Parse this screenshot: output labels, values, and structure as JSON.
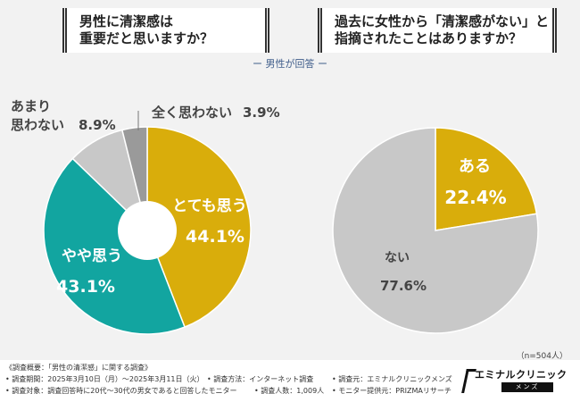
{
  "questions": {
    "q1": [
      "男性に清潔感は",
      "重要だと思いますか？"
    ],
    "q2": [
      "過去に女性から「清潔感がない」と",
      "指摘されたことはありますか？"
    ]
  },
  "respondent_label": "ー 男性が回答 ー",
  "sample_note": "（n=504人）",
  "chart_data": [
    {
      "type": "pie",
      "donut": true,
      "title": "男性に清潔感は重要だと思いますか？",
      "slices": [
        {
          "label": "とても思う",
          "value": 44.1,
          "display": "44.1%",
          "color": "#d9ad0b",
          "text_color": "#ffffff"
        },
        {
          "label": "やや思う",
          "value": 43.1,
          "display": "43.1%",
          "color": "#12a5a0",
          "text_color": "#ffffff"
        },
        {
          "label": "あまり思わない",
          "label_lines": [
            "あまり",
            "思わない"
          ],
          "value": 8.9,
          "display": "8.9%",
          "color": "#c8c8c8",
          "text_color": "#444444"
        },
        {
          "label": "全く思わない",
          "value": 3.9,
          "display": "3.9%",
          "color": "#9a9a9a",
          "text_color": "#444444"
        }
      ]
    },
    {
      "type": "pie",
      "donut": false,
      "title": "過去に女性から「清潔感がない」と指摘されたことはありますか？",
      "slices": [
        {
          "label": "ある",
          "value": 22.4,
          "display": "22.4%",
          "color": "#d9ad0b",
          "text_color": "#ffffff"
        },
        {
          "label": "ない",
          "value": 77.6,
          "display": "77.6%",
          "color": "#c8c8c8",
          "text_color": "#444444"
        }
      ]
    }
  ],
  "footer": {
    "overview": "《調査概要：「男性の清潔感」に関する調査》",
    "period": "• 調査期間：2025年3月10日（月）～2025年3月11日（火）",
    "method": "• 調査方法：インターネット調査",
    "source": "• 調査元：エミナルクリニックメンズ",
    "target": "• 調査対象：調査回答時に20代～30代の男女であると回答したモニター",
    "count": "• 調査人数：1,009人",
    "provider": "• モニター提供元：PRIZMAリサーチ"
  },
  "logo": {
    "name": "エミナルクリニック",
    "sub": "メンズ"
  }
}
